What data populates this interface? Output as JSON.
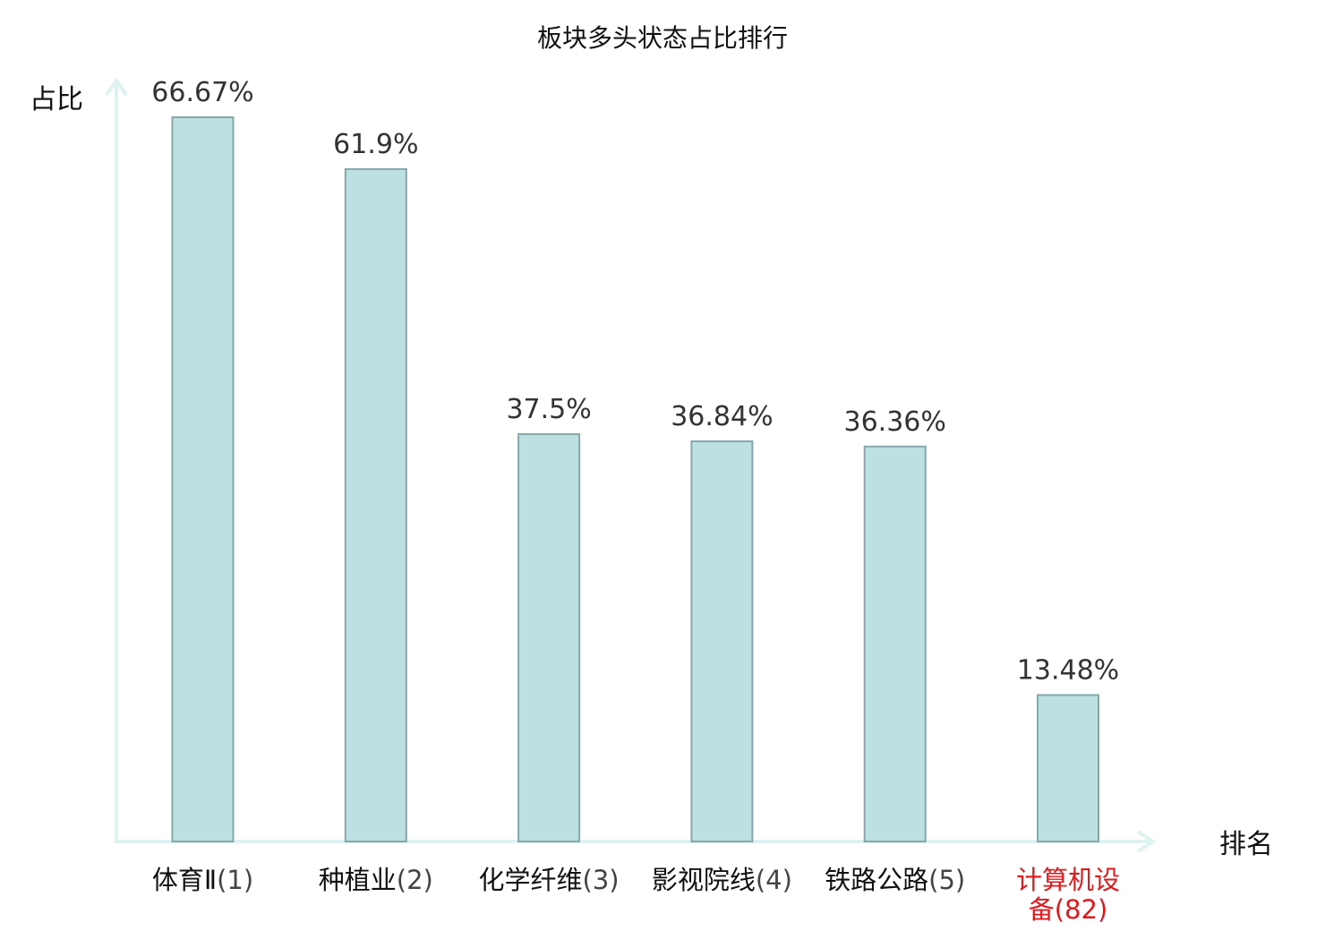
{
  "chart_data": {
    "type": "bar",
    "title": "板块多头状态占比排行",
    "xlabel": "排名",
    "ylabel": "占比",
    "categories": [
      {
        "name": "体育Ⅱ",
        "rank": "(1)"
      },
      {
        "name": "种植业",
        "rank": "(2)"
      },
      {
        "name": "化学纤维",
        "rank": "(3)"
      },
      {
        "name": "影视院线",
        "rank": "(4)"
      },
      {
        "name": "铁路公路",
        "rank": "(5)"
      },
      {
        "name": "计算机设备",
        "rank": "(82)",
        "highlight": true
      }
    ],
    "values": [
      66.67,
      61.9,
      37.5,
      36.84,
      36.36,
      13.48
    ],
    "value_labels": [
      "66.67%",
      "61.9%",
      "37.5%",
      "36.84%",
      "36.36%",
      "13.48%"
    ],
    "ylim": [
      0,
      70
    ],
    "grid": false,
    "colors": {
      "bar_fill": "#bde0e3",
      "bar_stroke": "#86a8ab",
      "axis": "#def2ef",
      "highlight_label": "#e0191c",
      "label_text": "#111111",
      "rank_text": "#444444",
      "value_text": "#333333"
    }
  }
}
